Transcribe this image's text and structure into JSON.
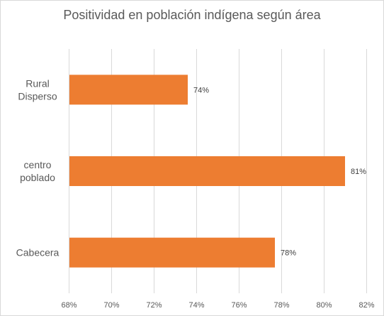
{
  "chart_data": {
    "type": "bar",
    "orientation": "horizontal",
    "title": "Positividad en población indígena según área",
    "categories": [
      [
        "Rural",
        "Disperso"
      ],
      [
        "centro",
        "poblado"
      ],
      [
        "Cabecera"
      ]
    ],
    "values": [
      73.6,
      81.0,
      77.7
    ],
    "data_labels": [
      "74%",
      "81%",
      "78%"
    ],
    "x_ticks": [
      "68%",
      "70%",
      "72%",
      "74%",
      "76%",
      "78%",
      "80%",
      "82%"
    ],
    "xlim": [
      68,
      82
    ],
    "x_tick_step": 2,
    "grid": true,
    "bar_color": "#ED7D31",
    "legend": "none"
  }
}
